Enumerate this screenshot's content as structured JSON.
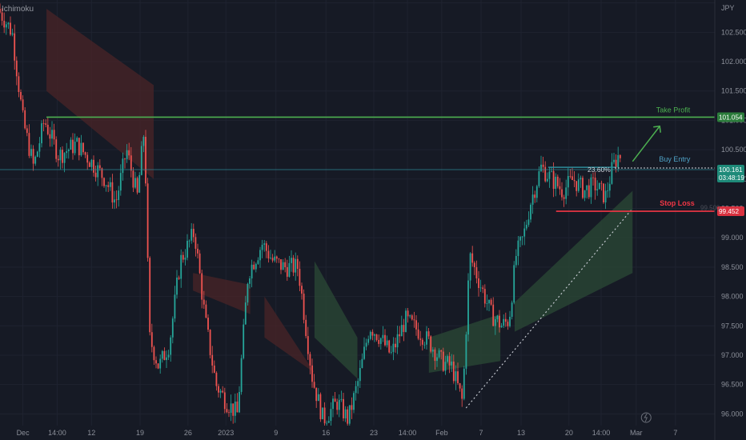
{
  "header": {
    "indicator_label": "Ichimoku",
    "currency": "JPY"
  },
  "colors": {
    "background": "#161a25",
    "up": "#26a69a",
    "down": "#ef5350",
    "take_profit": "#4caf50",
    "stop_loss": "#f23645",
    "buy_entry": "#2e8c9a",
    "cloud_bull": "#2b4a36",
    "cloud_bear": "#4a2427"
  },
  "chart_data": {
    "type": "candlestick",
    "title": "",
    "xlabel": "",
    "ylabel": "",
    "ylim": [
      95.8,
      103.05
    ],
    "y_ticks": [
      96.0,
      96.5,
      97.0,
      97.5,
      98.0,
      98.5,
      99.0,
      99.5,
      100.0,
      100.5,
      101.0,
      101.5,
      102.0,
      102.5,
      103.0
    ],
    "y_tick_labels": [
      "96.000",
      "96.500",
      "97.000",
      "97.500",
      "98.000",
      "98.500",
      "99.000",
      "99.500",
      "100.000",
      "100.500",
      "101.000",
      "101.500",
      "102.000",
      "102.500",
      "JPY"
    ],
    "x_ticks": [
      {
        "label": "Dec",
        "x": 0.032
      },
      {
        "label": "14:00",
        "x": 0.08
      },
      {
        "label": "12",
        "x": 0.128
      },
      {
        "label": "19",
        "x": 0.196
      },
      {
        "label": "26",
        "x": 0.263
      },
      {
        "label": "2023",
        "x": 0.316
      },
      {
        "label": "9",
        "x": 0.386
      },
      {
        "label": "16",
        "x": 0.456
      },
      {
        "label": "23",
        "x": 0.523
      },
      {
        "label": "14:00",
        "x": 0.57
      },
      {
        "label": "Feb",
        "x": 0.618
      },
      {
        "label": "7",
        "x": 0.673
      },
      {
        "label": "13",
        "x": 0.729
      },
      {
        "label": "20",
        "x": 0.796
      },
      {
        "label": "14:00",
        "x": 0.841
      },
      {
        "label": "Mar",
        "x": 0.89
      },
      {
        "label": "7",
        "x": 0.945
      }
    ],
    "price_path": [
      [
        0.0,
        102.9
      ],
      [
        0.02,
        102.5
      ],
      [
        0.035,
        101.0
      ],
      [
        0.05,
        100.2
      ],
      [
        0.065,
        101.0
      ],
      [
        0.085,
        100.4
      ],
      [
        0.11,
        100.6
      ],
      [
        0.13,
        100.3
      ],
      [
        0.15,
        100.0
      ],
      [
        0.165,
        99.6
      ],
      [
        0.18,
        100.5
      ],
      [
        0.195,
        99.7
      ],
      [
        0.205,
        100.9
      ],
      [
        0.212,
        97.3
      ],
      [
        0.225,
        96.8
      ],
      [
        0.24,
        97.2
      ],
      [
        0.255,
        98.6
      ],
      [
        0.275,
        99.1
      ],
      [
        0.29,
        97.6
      ],
      [
        0.305,
        96.5
      ],
      [
        0.32,
        96.2
      ],
      [
        0.335,
        96.0
      ],
      [
        0.35,
        98.4
      ],
      [
        0.37,
        98.9
      ],
      [
        0.385,
        98.6
      ],
      [
        0.4,
        98.5
      ],
      [
        0.42,
        98.5
      ],
      [
        0.44,
        96.6
      ],
      [
        0.455,
        95.9
      ],
      [
        0.475,
        96.2
      ],
      [
        0.49,
        95.9
      ],
      [
        0.505,
        96.6
      ],
      [
        0.52,
        97.5
      ],
      [
        0.535,
        97.3
      ],
      [
        0.55,
        97.0
      ],
      [
        0.57,
        97.6
      ],
      [
        0.59,
        97.4
      ],
      [
        0.605,
        97.2
      ],
      [
        0.62,
        96.9
      ],
      [
        0.635,
        96.8
      ],
      [
        0.65,
        96.2
      ],
      [
        0.66,
        98.7
      ],
      [
        0.675,
        98.2
      ],
      [
        0.69,
        97.7
      ],
      [
        0.705,
        97.5
      ],
      [
        0.715,
        97.6
      ],
      [
        0.725,
        98.7
      ],
      [
        0.735,
        99.0
      ],
      [
        0.745,
        99.6
      ],
      [
        0.76,
        100.2
      ],
      [
        0.775,
        100.0
      ],
      [
        0.79,
        99.8
      ],
      [
        0.805,
        100.0
      ],
      [
        0.82,
        99.8
      ],
      [
        0.835,
        99.9
      ],
      [
        0.85,
        99.7
      ],
      [
        0.86,
        100.2
      ],
      [
        0.868,
        100.4
      ]
    ],
    "series": [
      {
        "name": "Take Profit",
        "value": 101.054,
        "label": "101.054",
        "x_range": [
          0.065,
          0.965
        ]
      },
      {
        "name": "Buy Entry",
        "value": 100.161,
        "label": "100.161",
        "x_range": [
          0.0,
          0.965
        ]
      },
      {
        "name": "Stop Loss",
        "value": 99.452,
        "label": "99.452",
        "x_range": [
          0.778,
          0.965
        ]
      }
    ],
    "countdown": "03:48:19",
    "fib_label": "23.60%",
    "buy_entry_top_value": 100.2,
    "trendline": {
      "from": [
        0.652,
        96.1
      ],
      "to": [
        0.885,
        99.5
      ]
    },
    "tp_arrow": {
      "from": [
        0.885,
        100.3
      ],
      "to": [
        0.923,
        100.9
      ]
    },
    "clouds": {
      "bear": [
        {
          "x": [
            0.065,
            0.215
          ],
          "top": [
            102.9,
            101.6
          ],
          "bottom": [
            101.5,
            100.0
          ]
        },
        {
          "x": [
            0.27,
            0.35
          ],
          "top": [
            98.4,
            98.2
          ],
          "bottom": [
            98.1,
            97.7
          ]
        },
        {
          "x": [
            0.37,
            0.44
          ],
          "top": [
            98.0,
            96.7
          ],
          "bottom": [
            97.3,
            96.7
          ]
        }
      ],
      "bull": [
        {
          "x": [
            0.44,
            0.5
          ],
          "top": [
            98.6,
            97.3
          ],
          "bottom": [
            97.3,
            96.6
          ]
        },
        {
          "x": [
            0.6,
            0.7
          ],
          "top": [
            97.3,
            97.7
          ],
          "bottom": [
            96.7,
            96.9
          ]
        },
        {
          "x": [
            0.72,
            0.885
          ],
          "top": [
            97.9,
            99.8
          ],
          "bottom": [
            97.4,
            98.4
          ]
        }
      ]
    },
    "labels": {
      "take_profit": "Take Profit",
      "buy_entry": "Buy Entry",
      "stop_loss": "Stop Loss",
      "stop_loss_partial": "99.500"
    }
  }
}
